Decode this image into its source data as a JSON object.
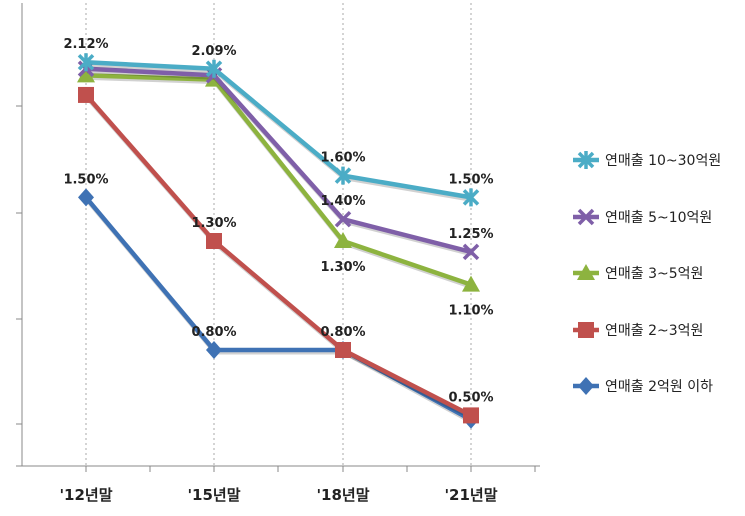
{
  "chart_data": {
    "type": "line",
    "categories": [
      "'12년말",
      "'15년말",
      "'18년말",
      "'21년말"
    ],
    "ylim": [
      0.4,
      2.2
    ],
    "grid": "vertical dotted lines at categories",
    "legend_position": "right",
    "series": [
      {
        "name": "연매출 10~30억원",
        "color": "#4BACC6",
        "marker": "star",
        "values": [
          2.12,
          2.09,
          1.6,
          1.5
        ],
        "labels": [
          "2.12%",
          "2.09%",
          "1.60%",
          "1.50%"
        ],
        "label_pos": [
          "above",
          "above",
          "above",
          "above"
        ]
      },
      {
        "name": "연매출 5~10억원",
        "color": "#7F5FA8",
        "marker": "x",
        "values": [
          2.09,
          2.06,
          1.4,
          1.25
        ],
        "labels": [
          "",
          "",
          "1.40%",
          "1.25%"
        ],
        "label_pos": [
          "none",
          "none",
          "above",
          "above"
        ]
      },
      {
        "name": "연매출 3~5억원",
        "color": "#8DB33F",
        "marker": "triangle",
        "values": [
          2.06,
          2.04,
          1.3,
          1.1
        ],
        "labels": [
          "",
          "",
          "1.30%",
          "1.10%"
        ],
        "label_pos": [
          "none",
          "none",
          "below",
          "below"
        ]
      },
      {
        "name": "연매출 2~3억원",
        "color": "#C0504D",
        "marker": "square",
        "values": [
          1.97,
          1.3,
          0.8,
          0.5
        ],
        "labels": [
          "",
          "1.30%",
          "0.80%",
          "0.50%"
        ],
        "label_pos": [
          "none",
          "above",
          "above",
          "above"
        ]
      },
      {
        "name": "연매출 2억원 이하",
        "color": "#3F72B4",
        "marker": "diamond",
        "values": [
          1.5,
          0.8,
          0.8,
          0.48
        ],
        "labels": [
          "1.50%",
          "0.80%",
          "",
          ""
        ],
        "label_pos": [
          "above",
          "above",
          "none",
          "none"
        ]
      }
    ]
  }
}
